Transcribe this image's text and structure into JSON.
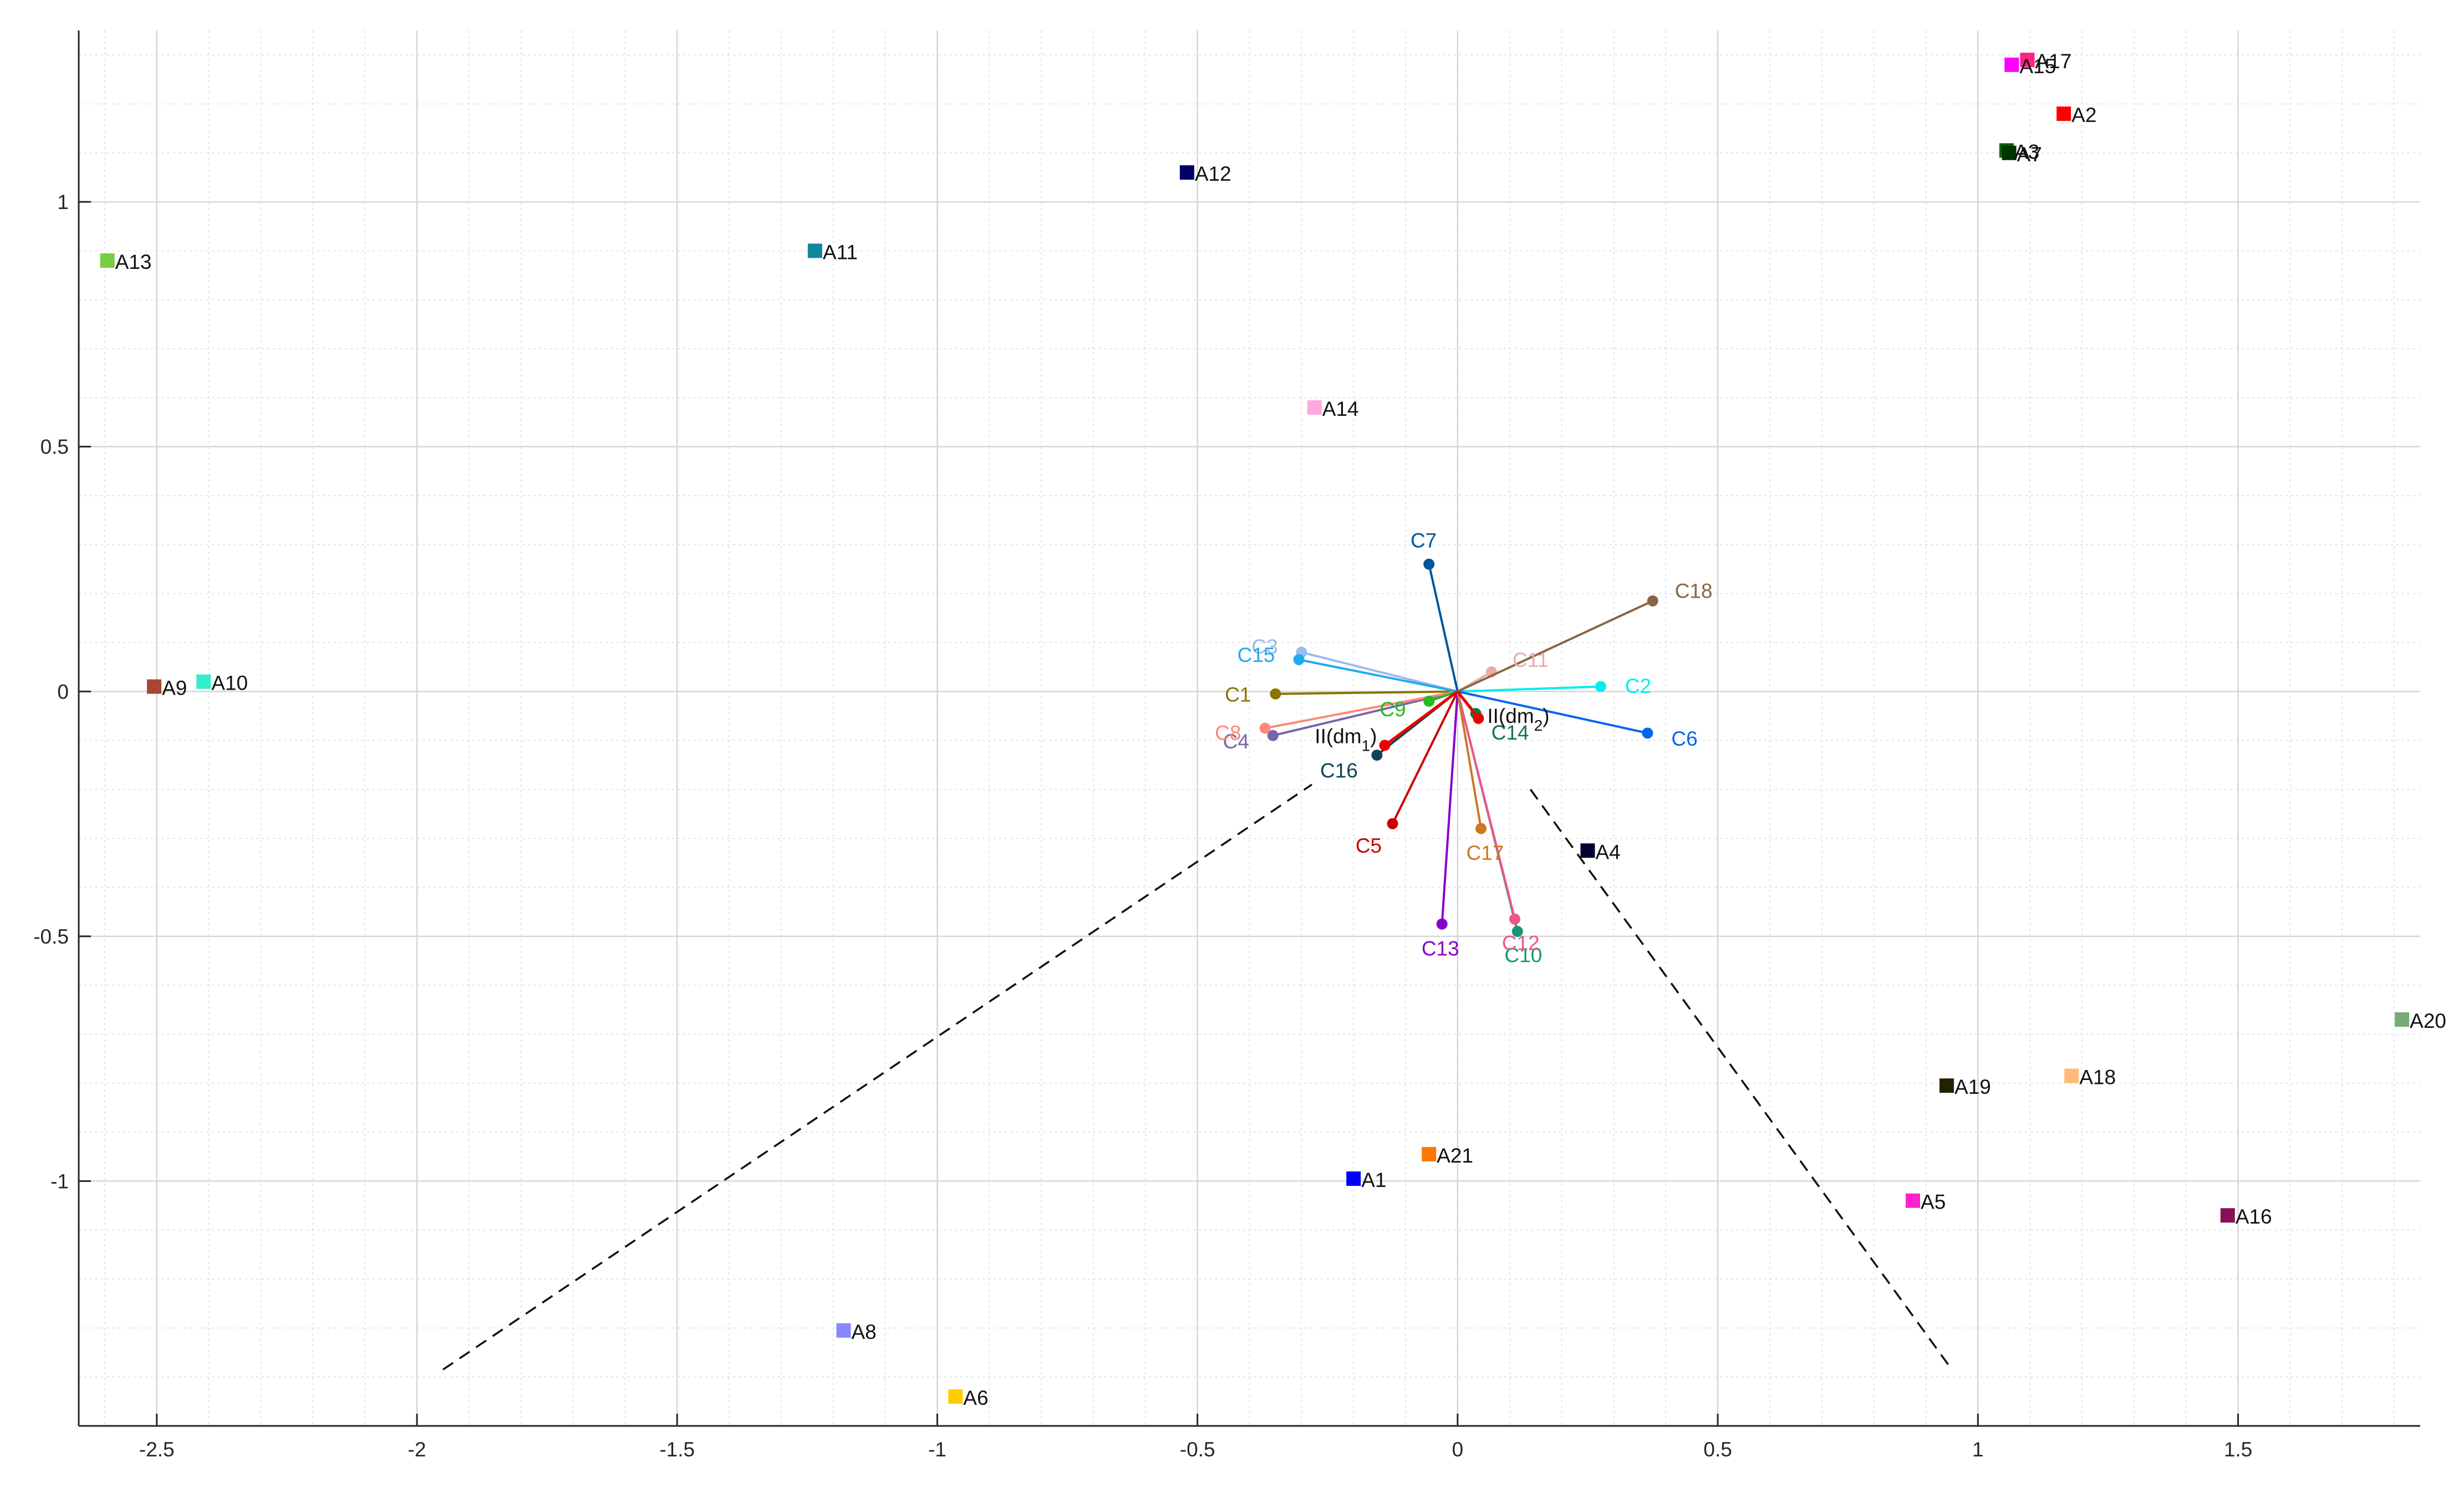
{
  "chart_data": {
    "type": "scatter",
    "title": "",
    "xlabel": "",
    "ylabel": "",
    "xlim": [
      -2.65,
      1.85
    ],
    "ylim": [
      -1.5,
      1.35
    ],
    "grid": true,
    "minor_grid": true,
    "x_ticks": [
      -2.5,
      -2,
      -1.5,
      -1,
      -0.5,
      0,
      0.5,
      1,
      1.5
    ],
    "x_tick_labels": [
      "-2.5",
      "-2",
      "-1.5",
      "-1",
      "-0.5",
      "0",
      "0.5",
      "1",
      "1.5"
    ],
    "y_ticks": [
      1,
      0.5,
      0,
      -0.5,
      -1
    ],
    "y_tick_labels": [
      "1",
      "0.5",
      "0",
      "-0.5",
      "-1"
    ],
    "alternatives": [
      {
        "label": "A1",
        "x": -0.2,
        "y": -0.995,
        "color": "#0000ff"
      },
      {
        "label": "A2",
        "x": 1.165,
        "y": 1.18,
        "color": "#ff0000"
      },
      {
        "label": "A3",
        "x": 1.055,
        "y": 1.105,
        "color": "#006600"
      },
      {
        "label": "A4",
        "x": 0.25,
        "y": -0.325,
        "color": "#000033"
      },
      {
        "label": "A5",
        "x": 0.875,
        "y": -1.04,
        "color": "#ff22cc"
      },
      {
        "label": "A6",
        "x": -0.965,
        "y": -1.44,
        "color": "#ffcc00"
      },
      {
        "label": "A7",
        "x": 1.06,
        "y": 1.1,
        "color": "#003300"
      },
      {
        "label": "A8",
        "x": -1.18,
        "y": -1.305,
        "color": "#8888ff"
      },
      {
        "label": "A9",
        "x": -2.505,
        "y": 0.01,
        "color": "#aa4433"
      },
      {
        "label": "A10",
        "x": -2.41,
        "y": 0.02,
        "color": "#33eecc"
      },
      {
        "label": "A11",
        "x": -1.235,
        "y": 0.9,
        "color": "#118899"
      },
      {
        "label": "A12",
        "x": -0.52,
        "y": 1.06,
        "color": "#000066"
      },
      {
        "label": "A13",
        "x": -2.595,
        "y": 0.88,
        "color": "#77cc44"
      },
      {
        "label": "A14",
        "x": -0.275,
        "y": 0.58,
        "color": "#ffaadd"
      },
      {
        "label": "A15",
        "x": 1.065,
        "y": 1.28,
        "color": "#ff00ff"
      },
      {
        "label": "A16",
        "x": 1.48,
        "y": -1.07,
        "color": "#881155"
      },
      {
        "label": "A17",
        "x": 1.095,
        "y": 1.29,
        "color": "#ff2288"
      },
      {
        "label": "A18",
        "x": 1.18,
        "y": -0.785,
        "color": "#ffbb77"
      },
      {
        "label": "A19",
        "x": 0.94,
        "y": -0.805,
        "color": "#222200"
      },
      {
        "label": "A20",
        "x": 1.815,
        "y": -0.67,
        "color": "#77aa77"
      },
      {
        "label": "A21",
        "x": -0.055,
        "y": -0.945,
        "color": "#ff7700"
      }
    ],
    "criteria": [
      {
        "label": "C1",
        "x": -0.35,
        "y": -0.005,
        "color": "#887700"
      },
      {
        "label": "C2",
        "x": 0.275,
        "y": 0.01,
        "color": "#00eeee"
      },
      {
        "label": "C3",
        "x": -0.3,
        "y": 0.08,
        "color": "#99bbee"
      },
      {
        "label": "C4",
        "x": -0.355,
        "y": -0.09,
        "color": "#7766aa"
      },
      {
        "label": "C5",
        "x": -0.125,
        "y": -0.27,
        "color": "#cc0000"
      },
      {
        "label": "C6",
        "x": 0.365,
        "y": -0.085,
        "color": "#0066ee"
      },
      {
        "label": "C7",
        "x": -0.055,
        "y": 0.26,
        "color": "#005599"
      },
      {
        "label": "C8",
        "x": -0.37,
        "y": -0.075,
        "color": "#ff8877"
      },
      {
        "label": "C9",
        "x": -0.055,
        "y": -0.02,
        "color": "#22bb22"
      },
      {
        "label": "C10",
        "x": 0.115,
        "y": -0.49,
        "color": "#119977"
      },
      {
        "label": "C11",
        "x": 0.065,
        "y": 0.04,
        "color": "#eeaaaa"
      },
      {
        "label": "C12",
        "x": 0.11,
        "y": -0.465,
        "color": "#ee5588"
      },
      {
        "label": "C13",
        "x": -0.03,
        "y": -0.475,
        "color": "#8800cc"
      },
      {
        "label": "C14",
        "x": 0.035,
        "y": -0.045,
        "color": "#117744"
      },
      {
        "label": "C15",
        "x": -0.305,
        "y": 0.065,
        "color": "#22aaee"
      },
      {
        "label": "C16",
        "x": -0.155,
        "y": -0.13,
        "color": "#114455"
      },
      {
        "label": "C17",
        "x": 0.045,
        "y": -0.28,
        "color": "#cc7722"
      },
      {
        "label": "C18",
        "x": 0.375,
        "y": 0.185,
        "color": "#886644"
      }
    ],
    "decision_makers": [
      {
        "label": "II(dm",
        "subscript": "1",
        "x": -0.14,
        "y": -0.11,
        "color": "#ee0000"
      },
      {
        "label": "II(dm",
        "subscript": "2",
        "x": 0.04,
        "y": -0.055,
        "color": "#ee0000"
      }
    ],
    "dashed_lines": [
      {
        "x1": -1.95,
        "y1": -1.385,
        "x2": -0.28,
        "y2": -0.19
      },
      {
        "x1": 0.14,
        "y1": -0.2,
        "x2": 0.95,
        "y2": -1.385
      }
    ]
  }
}
